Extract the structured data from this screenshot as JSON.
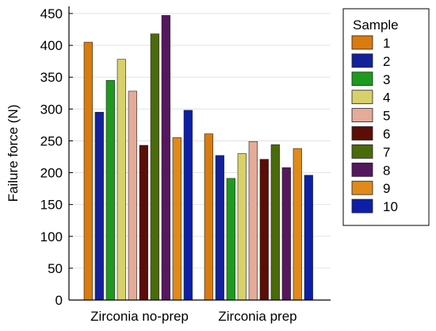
{
  "chart_data": {
    "type": "bar",
    "ylabel": "Failure force (N)",
    "xlabel": "",
    "ylim": [
      0,
      450
    ],
    "yticks": [
      0,
      50,
      100,
      150,
      200,
      250,
      300,
      350,
      400,
      450
    ],
    "grid": true,
    "legend_position": "right",
    "legend_title": "Sample",
    "categories": [
      "Zirconia no-prep",
      "Zirconia prep"
    ],
    "series": [
      {
        "name": "1",
        "color": "#d97b0f",
        "values": [
          405,
          261
        ]
      },
      {
        "name": "2",
        "color": "#13219a",
        "values": [
          295,
          227
        ]
      },
      {
        "name": "3",
        "color": "#1e9a1e",
        "values": [
          345,
          191
        ]
      },
      {
        "name": "4",
        "color": "#d8d06a",
        "values": [
          378,
          230
        ]
      },
      {
        "name": "5",
        "color": "#e3ab98",
        "values": [
          328,
          249
        ]
      },
      {
        "name": "6",
        "color": "#5b0e06",
        "values": [
          243,
          221
        ]
      },
      {
        "name": "7",
        "color": "#4a6b0a",
        "values": [
          418,
          244
        ]
      },
      {
        "name": "8",
        "color": "#55175e",
        "values": [
          447,
          208
        ]
      },
      {
        "name": "9",
        "color": "#e08a1a",
        "values": [
          255,
          238
        ]
      },
      {
        "name": "10",
        "color": "#0c1fa6",
        "values": [
          298,
          196
        ]
      }
    ]
  }
}
